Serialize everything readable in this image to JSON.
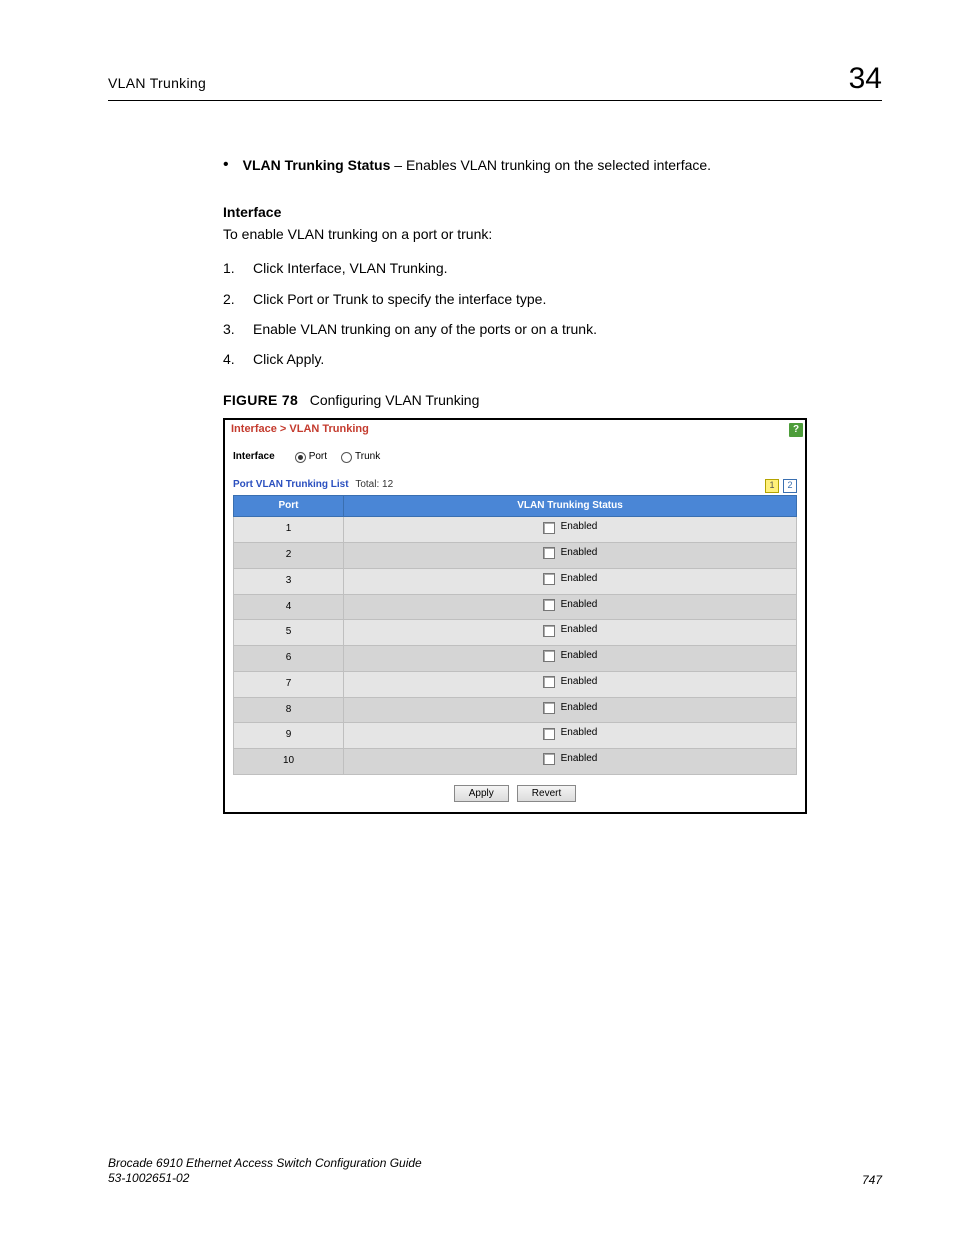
{
  "header": {
    "title": "VLAN Trunking",
    "chapter_number": "34"
  },
  "bullet": {
    "term": "VLAN Trunking Status",
    "desc": " – Enables VLAN trunking on the selected interface."
  },
  "interface_section": {
    "heading": "Interface",
    "intro": "To enable VLAN trunking on a port or trunk:",
    "steps": [
      "Click Interface, VLAN Trunking.",
      "Click Port or Trunk to specify the interface type.",
      "Enable VLAN trunking on any of the ports or on a trunk.",
      "Click Apply."
    ]
  },
  "figure": {
    "label": "FIGURE 78",
    "caption": "Configuring VLAN Trunking"
  },
  "panel": {
    "breadcrumb": "Interface > VLAN Trunking",
    "help_glyph": "?",
    "interface_label": "Interface",
    "radio_options": [
      {
        "label": "Port",
        "checked": true
      },
      {
        "label": "Trunk",
        "checked": false
      }
    ],
    "list_title": "Port VLAN Trunking List",
    "list_total_label": "Total:",
    "list_total_value": "12",
    "pagers": [
      {
        "label": "1",
        "active": true
      },
      {
        "label": "2",
        "active": false
      }
    ],
    "columns": {
      "port": "Port",
      "status": "VLAN Trunking Status"
    },
    "status_option_label": "Enabled",
    "rows": [
      {
        "port": "1",
        "enabled": false
      },
      {
        "port": "2",
        "enabled": false
      },
      {
        "port": "3",
        "enabled": false
      },
      {
        "port": "4",
        "enabled": false
      },
      {
        "port": "5",
        "enabled": false
      },
      {
        "port": "6",
        "enabled": false
      },
      {
        "port": "7",
        "enabled": false
      },
      {
        "port": "8",
        "enabled": false
      },
      {
        "port": "9",
        "enabled": false
      },
      {
        "port": "10",
        "enabled": false
      }
    ],
    "buttons": {
      "apply": "Apply",
      "revert": "Revert"
    },
    "colors": {
      "header_bg": "#4a86d6",
      "row_odd": "#e5e5e5",
      "row_even": "#d5d5d5",
      "breadcrumb": "#c43b2e",
      "list_title": "#2a4fbf",
      "help_bg": "#4d9d3a",
      "pager_active_bg": "#fff07a"
    }
  },
  "footer": {
    "line1": "Brocade 6910 Ethernet Access Switch Configuration Guide",
    "line2": "53-1002651-02",
    "page": "747"
  }
}
